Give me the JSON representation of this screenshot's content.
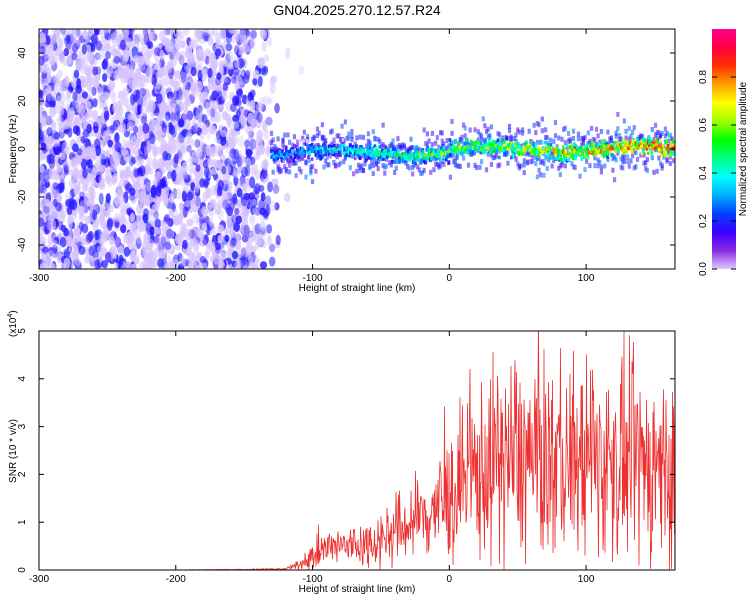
{
  "title": "GN04.2025.270.12.57.R24",
  "colors": {
    "snr_line": "#ee3030",
    "colorbar": [
      "#e0c8ff",
      "#8a2be2",
      "#3a00ff",
      "#0040ff",
      "#00b0ff",
      "#00ffff",
      "#00ff80",
      "#00ff00",
      "#a0ff00",
      "#ffff00",
      "#ffa000",
      "#ff3000",
      "#ff0040",
      "#ff0090"
    ]
  },
  "chart_data": [
    {
      "type": "heatmap",
      "xlabel": "Height of straight line (km)",
      "ylabel": "Frequency (Hz)",
      "xlim": [
        -300,
        165
      ],
      "ylim": [
        -50,
        50
      ],
      "x_ticks": [
        -300,
        -200,
        -100,
        0,
        100
      ],
      "y_ticks": [
        -40,
        -20,
        0,
        20,
        40
      ],
      "colorbar": {
        "label": "Normalized spectral amplitude",
        "range": [
          0,
          1
        ],
        "ticks": [
          "0.0",
          "0.2",
          "0.4",
          "0.6",
          "0.8"
        ]
      },
      "regions": [
        {
          "name": "noise",
          "x_range": [
            -300,
            -125
          ],
          "freq_range": [
            -50,
            50
          ],
          "amplitude": 0.12
        },
        {
          "name": "signal",
          "x_range": [
            -130,
            165
          ],
          "freq_center": 0,
          "freq_halfwidth": 3,
          "amplitude_start": 0.35,
          "amplitude_end": 0.9
        }
      ]
    },
    {
      "type": "line",
      "xlabel": "Height of straight line (km)",
      "ylabel": "SNR (10 * v/v)",
      "y_multiplier": "(x10",
      "y_multiplier_exp": "4",
      "xlim": [
        -300,
        165
      ],
      "ylim": [
        0,
        5
      ],
      "x_ticks": [
        -300,
        -200,
        -100,
        0,
        100
      ],
      "y_ticks": [
        0,
        1,
        2,
        3,
        4,
        5
      ],
      "series": [
        {
          "x": [
            -300,
            -200,
            -120,
            -110,
            -100,
            -90,
            -80,
            -60,
            -40,
            -20,
            0,
            20,
            40,
            60,
            80,
            100,
            120,
            140,
            165
          ],
          "values": [
            0.0,
            0.0,
            0.02,
            0.1,
            0.3,
            0.45,
            0.5,
            0.55,
            0.8,
            1.1,
            1.5,
            2.0,
            2.4,
            2.3,
            2.3,
            2.3,
            2.25,
            2.2,
            2.2
          ]
        }
      ]
    }
  ]
}
